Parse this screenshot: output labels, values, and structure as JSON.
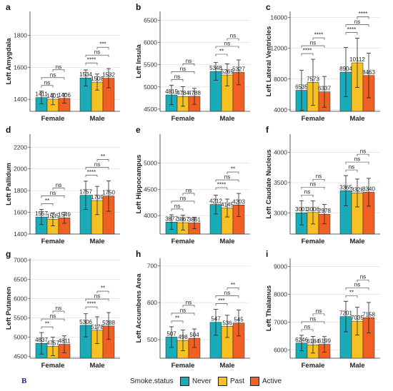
{
  "figure_letter": "B",
  "legend": {
    "title": "Smoke.status",
    "items": [
      {
        "name": "Never",
        "color": "#1AABB8"
      },
      {
        "name": "Past",
        "color": "#F6C125"
      },
      {
        "name": "Active",
        "color": "#F25F22"
      }
    ]
  },
  "chart_data": [
    {
      "type": "bar",
      "panel": "a",
      "ylabel": "Left Amygdala",
      "categories": [
        "Female",
        "Male"
      ],
      "ylim": [
        1325,
        1950
      ],
      "yticks": [
        1400,
        1600,
        1800
      ],
      "series": [
        {
          "name": "Never",
          "values": [
            1411,
            1534
          ],
          "err": [
            40,
            50
          ]
        },
        {
          "name": "Past",
          "values": [
            1401,
            1508
          ],
          "err": [
            35,
            50
          ]
        },
        {
          "name": "Active",
          "values": [
            1406,
            1532
          ],
          "err": [
            30,
            60
          ]
        }
      ],
      "value_labels": [
        [
          "1411",
          "1401",
          "1406"
        ],
        [
          "1534",
          "1508",
          "1532"
        ]
      ],
      "brackets": [
        {
          "group": 0,
          "from": 0,
          "to": 1,
          "level": 0,
          "label": "ns"
        },
        {
          "group": 0,
          "from": 0,
          "to": 2,
          "level": 1,
          "label": "ns"
        },
        {
          "group": 0,
          "from": 1,
          "to": 2,
          "level": 2,
          "label": "ns"
        },
        {
          "group": 1,
          "from": 0,
          "to": 1,
          "level": 0,
          "label": "****"
        },
        {
          "group": 1,
          "from": 0,
          "to": 2,
          "level": 1,
          "label": "ns"
        },
        {
          "group": 1,
          "from": 1,
          "to": 2,
          "level": 2,
          "label": "***"
        }
      ]
    },
    {
      "type": "bar",
      "panel": "b",
      "ylabel": "Left Insula",
      "categories": [
        "Female",
        "Male"
      ],
      "ylim": [
        4450,
        6700
      ],
      "yticks": [
        4500,
        5000,
        5500,
        6000,
        6500
      ],
      "series": [
        {
          "name": "Never",
          "values": [
            4819,
            5348
          ],
          "err": [
            220,
            200
          ]
        },
        {
          "name": "Past",
          "values": [
            4784,
            5269
          ],
          "err": [
            220,
            250
          ]
        },
        {
          "name": "Active",
          "values": [
            4788,
            5327
          ],
          "err": [
            180,
            280
          ]
        }
      ],
      "value_labels": [
        [
          "4819",
          "4784",
          "4788"
        ],
        [
          "5348",
          "5269",
          "5327"
        ]
      ],
      "brackets": [
        {
          "group": 0,
          "from": 0,
          "to": 1,
          "level": 0,
          "label": "ns"
        },
        {
          "group": 0,
          "from": 0,
          "to": 2,
          "level": 1,
          "label": "ns"
        },
        {
          "group": 0,
          "from": 1,
          "to": 2,
          "level": 2,
          "label": "ns"
        },
        {
          "group": 1,
          "from": 0,
          "to": 1,
          "level": 0,
          "label": "**"
        },
        {
          "group": 1,
          "from": 0,
          "to": 2,
          "level": 1,
          "label": "ns"
        },
        {
          "group": 1,
          "from": 1,
          "to": 2,
          "level": 2,
          "label": "ns"
        }
      ]
    },
    {
      "type": "bar",
      "panel": "c",
      "ylabel": "Left Lateral Ventricles",
      "categories": [
        "Female",
        "Male"
      ],
      "ylim": [
        3800,
        16800
      ],
      "yticks": [
        4000,
        8000,
        12000,
        16000
      ],
      "series": [
        {
          "name": "Never",
          "values": [
            6535,
            8904
          ],
          "err": [
            2600,
            3200
          ]
        },
        {
          "name": "Past",
          "values": [
            7573,
            10112
          ],
          "err": [
            3000,
            3200
          ]
        },
        {
          "name": "Active",
          "values": [
            6337,
            8463
          ],
          "err": [
            2000,
            2900
          ]
        }
      ],
      "value_labels": [
        [
          "6535",
          "7573",
          "6337"
        ],
        [
          "8904",
          "10112",
          "8463"
        ]
      ],
      "brackets": [
        {
          "group": 0,
          "from": 0,
          "to": 1,
          "level": 0,
          "label": "****"
        },
        {
          "group": 0,
          "from": 0,
          "to": 2,
          "level": 1,
          "label": "ns"
        },
        {
          "group": 0,
          "from": 1,
          "to": 2,
          "level": 2,
          "label": "****"
        },
        {
          "group": 1,
          "from": 0,
          "to": 1,
          "level": 0,
          "label": "****"
        },
        {
          "group": 1,
          "from": 0,
          "to": 2,
          "level": 1,
          "label": "ns"
        },
        {
          "group": 1,
          "from": 1,
          "to": 2,
          "level": 2,
          "label": "****"
        }
      ]
    },
    {
      "type": "bar",
      "panel": "d",
      "ylabel": "Left Pallidum",
      "categories": [
        "Female",
        "Male"
      ],
      "ylim": [
        1400,
        2320
      ],
      "yticks": [
        1400,
        1600,
        1800,
        2000,
        2200
      ],
      "series": [
        {
          "name": "Never",
          "values": [
            1557,
            1757
          ],
          "err": [
            70,
            130
          ]
        },
        {
          "name": "Past",
          "values": [
            1535,
            1709
          ],
          "err": [
            60,
            130
          ]
        },
        {
          "name": "Active",
          "values": [
            1549,
            1750
          ],
          "err": [
            50,
            140
          ]
        }
      ],
      "value_labels": [
        [
          "1557",
          "1535",
          "1549"
        ],
        [
          "1757",
          "1709",
          "1750"
        ]
      ],
      "brackets": [
        {
          "group": 0,
          "from": 0,
          "to": 1,
          "level": 0,
          "label": "**"
        },
        {
          "group": 0,
          "from": 0,
          "to": 2,
          "level": 1,
          "label": "ns"
        },
        {
          "group": 0,
          "from": 1,
          "to": 2,
          "level": 2,
          "label": "ns"
        },
        {
          "group": 1,
          "from": 0,
          "to": 1,
          "level": 0,
          "label": "****"
        },
        {
          "group": 1,
          "from": 0,
          "to": 2,
          "level": 1,
          "label": "ns"
        },
        {
          "group": 1,
          "from": 1,
          "to": 2,
          "level": 2,
          "label": "**"
        }
      ]
    },
    {
      "type": "bar",
      "panel": "e",
      "ylabel": "Left Hippocampus",
      "categories": [
        "Female",
        "Male"
      ],
      "ylim": [
        3650,
        5550
      ],
      "yticks": [
        4000,
        4500,
        5000
      ],
      "series": [
        {
          "name": "Never",
          "values": [
            3877,
            4212
          ],
          "err": [
            140,
            180
          ]
        },
        {
          "name": "Past",
          "values": [
            3867,
            4145
          ],
          "err": [
            140,
            170
          ]
        },
        {
          "name": "Active",
          "values": [
            3861,
            4203
          ],
          "err": [
            110,
            220
          ]
        }
      ],
      "value_labels": [
        [
          "3877",
          "3867",
          "3861"
        ],
        [
          "4212",
          "4145",
          "4203"
        ]
      ],
      "brackets": [
        {
          "group": 0,
          "from": 0,
          "to": 1,
          "level": 0,
          "label": "ns"
        },
        {
          "group": 0,
          "from": 0,
          "to": 2,
          "level": 1,
          "label": "ns"
        },
        {
          "group": 0,
          "from": 1,
          "to": 2,
          "level": 2,
          "label": "ns"
        },
        {
          "group": 1,
          "from": 0,
          "to": 1,
          "level": 0,
          "label": "****"
        },
        {
          "group": 1,
          "from": 0,
          "to": 2,
          "level": 1,
          "label": "ns"
        },
        {
          "group": 1,
          "from": 1,
          "to": 2,
          "level": 2,
          "label": "**"
        }
      ]
    },
    {
      "type": "bar",
      "panel": "f",
      "ylabel": "Left Caudate Nucleus",
      "categories": [
        "Female",
        "Male"
      ],
      "ylim": [
        2650,
        4300
      ],
      "yticks": [
        3000,
        3500,
        4000
      ],
      "series": [
        {
          "name": "Never",
          "values": [
            3001,
            3365
          ],
          "err": [
            200,
            250
          ]
        },
        {
          "name": "Past",
          "values": [
            3006,
            3328
          ],
          "err": [
            190,
            230
          ]
        },
        {
          "name": "Active",
          "values": [
            2978,
            3340
          ],
          "err": [
            160,
            230
          ]
        }
      ],
      "value_labels": [
        [
          "3001",
          "3006",
          "2978"
        ],
        [
          "3365",
          "3328",
          "3340"
        ]
      ],
      "brackets": [
        {
          "group": 0,
          "from": 0,
          "to": 1,
          "level": 0,
          "label": "ns"
        },
        {
          "group": 0,
          "from": 0,
          "to": 2,
          "level": 1,
          "label": "ns"
        },
        {
          "group": 0,
          "from": 1,
          "to": 2,
          "level": 2,
          "label": "ns"
        },
        {
          "group": 1,
          "from": 0,
          "to": 1,
          "level": 0,
          "label": "ns"
        },
        {
          "group": 1,
          "from": 0,
          "to": 2,
          "level": 1,
          "label": "ns"
        },
        {
          "group": 1,
          "from": 1,
          "to": 2,
          "level": 2,
          "label": "ns"
        }
      ]
    },
    {
      "type": "bar",
      "panel": "g",
      "ylabel": "Left Putamen",
      "categories": [
        "Female",
        "Male"
      ],
      "ylim": [
        4450,
        7050
      ],
      "yticks": [
        4500,
        5000,
        5500,
        6000,
        6500,
        7000
      ],
      "series": [
        {
          "name": "Never",
          "values": [
            4837,
            5306
          ],
          "err": [
            280,
            300
          ]
        },
        {
          "name": "Past",
          "values": [
            4757,
            5178
          ],
          "err": [
            240,
            350
          ]
        },
        {
          "name": "Active",
          "values": [
            4811,
            5288
          ],
          "err": [
            220,
            350
          ]
        }
      ],
      "value_labels": [
        [
          "4837",
          "4757",
          "4811"
        ],
        [
          "5306",
          "5178",
          "5288"
        ]
      ],
      "brackets": [
        {
          "group": 0,
          "from": 0,
          "to": 1,
          "level": 0,
          "label": "**"
        },
        {
          "group": 0,
          "from": 0,
          "to": 2,
          "level": 1,
          "label": "ns"
        },
        {
          "group": 0,
          "from": 1,
          "to": 2,
          "level": 2,
          "label": "ns"
        },
        {
          "group": 1,
          "from": 0,
          "to": 1,
          "level": 0,
          "label": "****"
        },
        {
          "group": 1,
          "from": 0,
          "to": 2,
          "level": 1,
          "label": "ns"
        },
        {
          "group": 1,
          "from": 1,
          "to": 2,
          "level": 2,
          "label": "**"
        }
      ]
    },
    {
      "type": "bar",
      "panel": "h",
      "ylabel": "Left Accumbens Area",
      "categories": [
        "Female",
        "Male"
      ],
      "ylim": [
        450,
        720
      ],
      "yticks": [
        500,
        600,
        700
      ],
      "series": [
        {
          "name": "Never",
          "values": [
            507,
            547
          ],
          "err": [
            28,
            35
          ]
        },
        {
          "name": "Past",
          "values": [
            498,
            536
          ],
          "err": [
            28,
            30
          ]
        },
        {
          "name": "Active",
          "values": [
            504,
            545
          ],
          "err": [
            25,
            35
          ]
        }
      ],
      "value_labels": [
        [
          "507",
          "498",
          "504"
        ],
        [
          "547",
          "536",
          "545"
        ]
      ],
      "brackets": [
        {
          "group": 0,
          "from": 0,
          "to": 1,
          "level": 0,
          "label": "**"
        },
        {
          "group": 0,
          "from": 0,
          "to": 2,
          "level": 1,
          "label": "ns"
        },
        {
          "group": 0,
          "from": 1,
          "to": 2,
          "level": 2,
          "label": "ns"
        },
        {
          "group": 1,
          "from": 0,
          "to": 1,
          "level": 0,
          "label": "***"
        },
        {
          "group": 1,
          "from": 0,
          "to": 2,
          "level": 1,
          "label": "ns"
        },
        {
          "group": 1,
          "from": 1,
          "to": 2,
          "level": 2,
          "label": "**"
        }
      ]
    },
    {
      "type": "bar",
      "panel": "i",
      "ylabel": "Left Thalamus",
      "categories": [
        "Female",
        "Male"
      ],
      "ylim": [
        5700,
        9300
      ],
      "yticks": [
        6000,
        7000,
        8000,
        9000
      ],
      "series": [
        {
          "name": "Never",
          "values": [
            6246,
            7201
          ],
          "err": [
            280,
            550
          ]
        },
        {
          "name": "Past",
          "values": [
            6184,
            7035
          ],
          "err": [
            300,
            500
          ]
        },
        {
          "name": "Active",
          "values": [
            6199,
            7158
          ],
          "err": [
            280,
            550
          ]
        }
      ],
      "value_labels": [
        [
          "6246",
          "6184",
          "6199"
        ],
        [
          "7201",
          "7035",
          "7158"
        ]
      ],
      "brackets": [
        {
          "group": 0,
          "from": 0,
          "to": 1,
          "level": 0,
          "label": "ns"
        },
        {
          "group": 0,
          "from": 0,
          "to": 2,
          "level": 1,
          "label": "ns"
        },
        {
          "group": 0,
          "from": 1,
          "to": 2,
          "level": 2,
          "label": "ns"
        },
        {
          "group": 1,
          "from": 0,
          "to": 1,
          "level": 0,
          "label": "**"
        },
        {
          "group": 1,
          "from": 0,
          "to": 2,
          "level": 1,
          "label": "ns"
        },
        {
          "group": 1,
          "from": 1,
          "to": 2,
          "level": 2,
          "label": "ns"
        }
      ]
    }
  ]
}
